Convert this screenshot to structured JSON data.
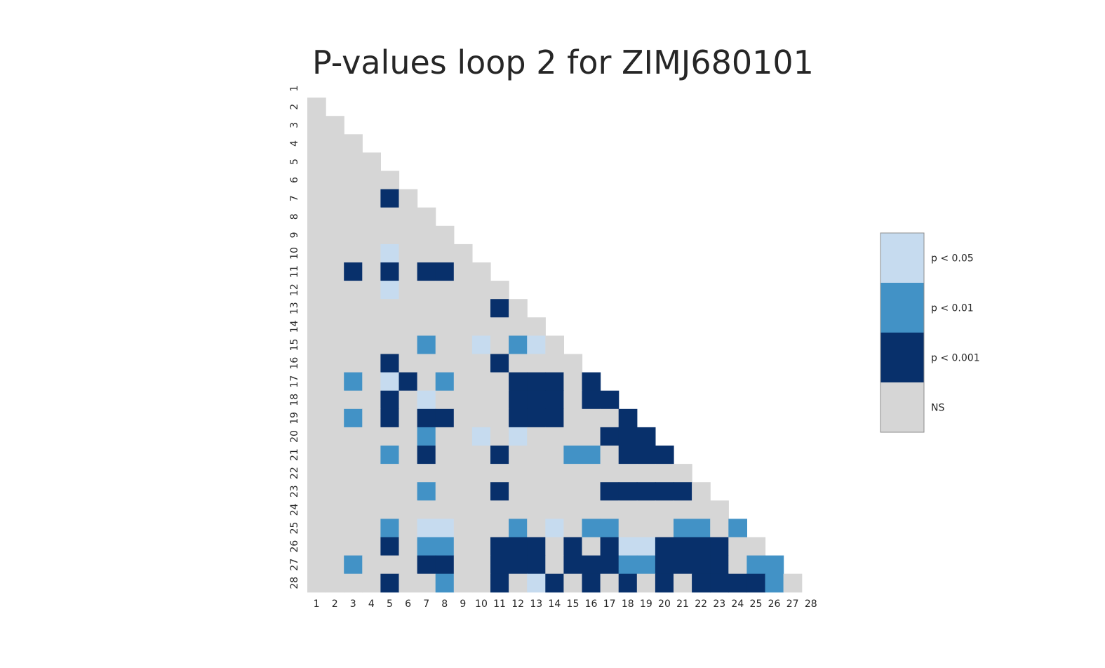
{
  "chart_data": {
    "type": "heatmap",
    "title": "P-values loop 2 for ZIMJ680101",
    "xlabel": "",
    "ylabel": "",
    "x_ticks": [
      "1",
      "2",
      "3",
      "4",
      "5",
      "6",
      "7",
      "8",
      "9",
      "10",
      "11",
      "12",
      "13",
      "14",
      "15",
      "16",
      "17",
      "18",
      "19",
      "20",
      "21",
      "22",
      "23",
      "24",
      "25",
      "26",
      "27",
      "28"
    ],
    "y_ticks": [
      "1",
      "2",
      "3",
      "4",
      "5",
      "6",
      "7",
      "8",
      "9",
      "10",
      "11",
      "12",
      "13",
      "14",
      "15",
      "16",
      "17",
      "18",
      "19",
      "20",
      "21",
      "22",
      "23",
      "24",
      "25",
      "26",
      "27",
      "28"
    ],
    "mask": "lower-triangle (cells with column < row shown)",
    "levels": [
      {
        "code": 3,
        "label": "p < 0.05",
        "color": "#c6dbef"
      },
      {
        "code": 2,
        "label": "p < 0.01",
        "color": "#4292c6"
      },
      {
        "code": 1,
        "label": "p < 0.001",
        "color": "#08306b"
      },
      {
        "code": 0,
        "label": "NS",
        "color": "#d6d6d6"
      }
    ],
    "legend_position": "right",
    "grid": false,
    "rows": [
      "",
      "0",
      "00",
      "000",
      "0000",
      "00000",
      "000010",
      "0000000",
      "00000000",
      "000030000",
      "0010101100",
      "00003000000",
      "000000000010",
      "0000000000000",
      "00000020030230",
      "000010000010000",
      "0020310200011101",
      "00001030000111011",
      "002010110001110001",
      "0000002003030000111",
      "00002010001000220111",
      "000000000000000000000",
      "0000002000100000111110",
      "00000000000000000000000",
      "000020330002030220002202",
      "0000102200111010133111100",
      "00200011001110111221111022",
      "000010020010310101010111120"
    ]
  }
}
